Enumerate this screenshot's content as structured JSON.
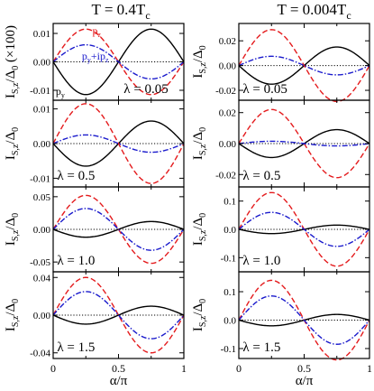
{
  "chart_data": {
    "type": "line",
    "xlabel": "α/π",
    "ylabel": "I_{S,z}/Δ_0",
    "ylabel_top_scaled": "I_{S,z}/Δ_0 (×100)",
    "x_ticks": [
      0,
      0.5,
      1
    ],
    "x_tick_labels": [
      "0",
      "0.5",
      "1"
    ],
    "x_range": [
      0,
      1
    ],
    "line_styles": {
      "solid": "#000000",
      "dashed": "#e41a1c",
      "dashdot": "#1a1acc"
    },
    "series_labels": {
      "p_z": "p_z",
      "p_y": "p_y",
      "p_y_plus_ip_z": "p_y+ip_z"
    },
    "columns": [
      {
        "title": "T = 0.4T_c",
        "panels": [
          {
            "lambda_label": "λ = 0.05",
            "ylim": [
              -0.0135,
              0.0135
            ],
            "yticks": [
              -0.01,
              0,
              0.01
            ],
            "ytick_labels": [
              "-0.01",
              "0.00",
              "0.01"
            ],
            "solid": 0.0115,
            "dashed": 0.0115,
            "dashdot": 0.006,
            "show_series_labels": true
          },
          {
            "lambda_label": "λ = 0.5",
            "ylim": [
              -0.0125,
              0.0125
            ],
            "yticks": [
              -0.01,
              0,
              0.01
            ],
            "ytick_labels": [
              "-0.01",
              "0.00",
              "0.01"
            ],
            "solid": 0.0065,
            "dashed": 0.0115,
            "dashdot": 0.0025,
            "show_series_labels": false
          },
          {
            "lambda_label": "λ = 1.0",
            "ylim": [
              -0.065,
              0.065
            ],
            "yticks": [
              -0.05,
              0,
              0.05
            ],
            "ytick_labels": [
              "-0.05",
              "0.00",
              "0.05"
            ],
            "solid": 0.012,
            "dashed": 0.052,
            "dashdot": 0.032,
            "show_series_labels": false
          },
          {
            "lambda_label": "λ = 1.5",
            "ylim": [
              -0.046,
              0.046
            ],
            "yticks": [
              -0.04,
              0,
              0.04
            ],
            "ytick_labels": [
              "-0.04",
              "0.00",
              "0.04"
            ],
            "solid": 0.0095,
            "dashed": 0.04,
            "dashdot": 0.025,
            "show_series_labels": false
          }
        ]
      },
      {
        "title": "T = 0.004T_c",
        "panels": [
          {
            "lambda_label": "λ = 0.05",
            "ylim": [
              -0.028,
              0.034
            ],
            "yticks": [
              -0.02,
              0,
              0.02
            ],
            "ytick_labels": [
              "-0.02",
              "0.00",
              "0.02"
            ],
            "solid": 0.015,
            "dashed": 0.029,
            "dashdot": 0.0075,
            "show_series_labels": false
          },
          {
            "lambda_label": "λ = 0.5",
            "ylim": [
              -0.028,
              0.028
            ],
            "yticks": [
              -0.02,
              0,
              0.02
            ],
            "ytick_labels": [
              "-0.02",
              "0.00",
              "0.02"
            ],
            "solid": 0.009,
            "dashed": 0.022,
            "dashdot": 0.0015,
            "show_series_labels": false
          },
          {
            "lambda_label": "λ = 1.0",
            "ylim": [
              -0.15,
              0.15
            ],
            "yticks": [
              -0.1,
              0,
              0.1
            ],
            "ytick_labels": [
              "-0.1",
              "0.0",
              "0.1"
            ],
            "solid": 0.015,
            "dashed": 0.13,
            "dashdot": 0.06,
            "show_series_labels": false
          },
          {
            "lambda_label": "λ = 1.5",
            "ylim": [
              -0.135,
              0.17
            ],
            "yticks": [
              -0.1,
              0,
              0.1
            ],
            "ytick_labels": [
              "-0.1",
              "0.0",
              "0.1"
            ],
            "solid": 0.02,
            "dashed": 0.14,
            "dashdot": 0.085,
            "show_series_labels": false
          }
        ]
      }
    ]
  }
}
